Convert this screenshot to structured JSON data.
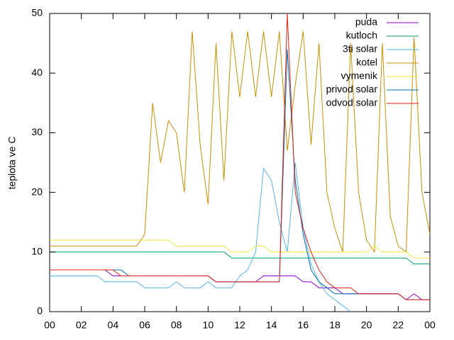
{
  "chart_data": {
    "type": "line",
    "ylabel": "teplota ve C",
    "x": [
      0,
      0.5,
      1,
      1.5,
      2,
      2.5,
      3,
      3.5,
      4,
      4.5,
      5,
      5.5,
      6,
      6.5,
      7,
      7.5,
      8,
      8.5,
      9,
      9.5,
      10,
      10.5,
      11,
      11.5,
      12,
      12.5,
      13,
      13.5,
      14,
      14.5,
      15,
      15.5,
      16,
      16.5,
      17,
      17.5,
      18,
      18.5,
      19,
      19.5,
      20,
      20.5,
      21,
      21.5,
      22,
      22.5,
      23,
      23.5,
      24
    ],
    "xlim": [
      0,
      24
    ],
    "xticks": [
      {
        "value": 0,
        "label": "00"
      },
      {
        "value": 2,
        "label": "02"
      },
      {
        "value": 4,
        "label": "04"
      },
      {
        "value": 6,
        "label": "06"
      },
      {
        "value": 8,
        "label": "08"
      },
      10,
      12,
      14,
      16,
      18,
      20,
      22,
      {
        "value": 24,
        "label": "00"
      }
    ],
    "ylim": [
      0,
      50
    ],
    "yticks": [
      0,
      10,
      20,
      30,
      40,
      50
    ],
    "legend": "top-right",
    "series": [
      {
        "name": "puda",
        "color": "#9400d3",
        "values": [
          7,
          7,
          7,
          7,
          7,
          7,
          7,
          7,
          6,
          6,
          6,
          6,
          6,
          6,
          6,
          6,
          6,
          6,
          6,
          6,
          6,
          5,
          5,
          5,
          5,
          5,
          5,
          6,
          6,
          6,
          6,
          6,
          5,
          5,
          4,
          4,
          4,
          3,
          3,
          3,
          3,
          3,
          3,
          3,
          3,
          2,
          3,
          2,
          2
        ]
      },
      {
        "name": "kutloch",
        "color": "#009e73",
        "values": [
          10,
          10,
          10,
          10,
          10,
          10,
          10,
          10,
          10,
          10,
          10,
          10,
          10,
          10,
          10,
          10,
          10,
          10,
          10,
          10,
          10,
          10,
          10,
          9,
          9,
          9,
          9,
          9,
          9,
          9,
          9,
          9,
          9,
          9,
          9,
          9,
          9,
          9,
          9,
          9,
          9,
          9,
          9,
          9,
          9,
          9,
          8,
          8,
          8
        ]
      },
      {
        "name": "3ti solar",
        "color": "#56b4e9",
        "values": [
          6,
          6,
          6,
          6,
          6,
          6,
          6,
          5,
          5,
          5,
          5,
          5,
          4,
          4,
          4,
          4,
          5,
          4,
          4,
          4,
          5,
          4,
          4,
          4,
          6,
          7,
          10,
          24,
          22,
          15,
          10,
          25,
          14,
          8,
          5,
          3,
          2,
          1,
          0,
          null,
          null,
          null,
          null,
          null,
          null,
          null,
          null,
          null,
          null
        ]
      },
      {
        "name": "kotel",
        "color": "#c89000",
        "values": [
          11,
          11,
          11,
          11,
          11,
          11,
          11,
          11,
          11,
          11,
          11,
          11,
          13,
          35,
          25,
          32,
          30,
          20,
          47,
          28,
          18,
          45,
          22,
          47,
          36,
          47,
          36,
          47,
          36,
          47,
          27,
          38,
          47,
          28,
          45,
          20,
          14,
          10,
          45,
          20,
          12,
          10,
          45,
          16,
          11,
          10,
          46,
          20,
          13
        ]
      },
      {
        "name": "vymenik",
        "color": "#f0e442",
        "values": [
          12,
          12,
          12,
          12,
          12,
          12,
          12,
          12,
          12,
          12,
          12,
          12,
          12,
          12,
          12,
          12,
          11,
          11,
          11,
          11,
          11,
          11,
          11,
          10,
          10,
          10,
          11,
          11,
          10,
          10,
          10,
          10,
          10,
          10,
          10,
          10,
          10,
          10,
          10,
          10,
          10,
          11,
          10,
          10,
          10,
          10,
          9,
          9,
          9
        ]
      },
      {
        "name": "privod solar",
        "color": "#0072b2",
        "values": [
          7,
          7,
          7,
          7,
          7,
          7,
          7,
          7,
          7,
          7,
          6,
          6,
          6,
          6,
          6,
          6,
          6,
          6,
          6,
          6,
          6,
          5,
          5,
          5,
          5,
          5,
          5,
          5,
          5,
          5,
          44,
          22,
          13,
          7,
          5,
          4,
          3,
          3,
          3,
          3,
          3,
          3,
          3,
          3,
          3,
          2,
          2,
          2,
          2
        ]
      },
      {
        "name": "odvod solar",
        "color": "#e51e10",
        "values": [
          7,
          7,
          7,
          7,
          7,
          7,
          7,
          7,
          7,
          6,
          6,
          6,
          6,
          6,
          6,
          6,
          6,
          6,
          6,
          6,
          6,
          5,
          5,
          5,
          5,
          5,
          5,
          5,
          5,
          5,
          50,
          20,
          14,
          10,
          7,
          5,
          4,
          4,
          4,
          3,
          3,
          3,
          3,
          3,
          3,
          2,
          2,
          2,
          2
        ]
      }
    ]
  }
}
